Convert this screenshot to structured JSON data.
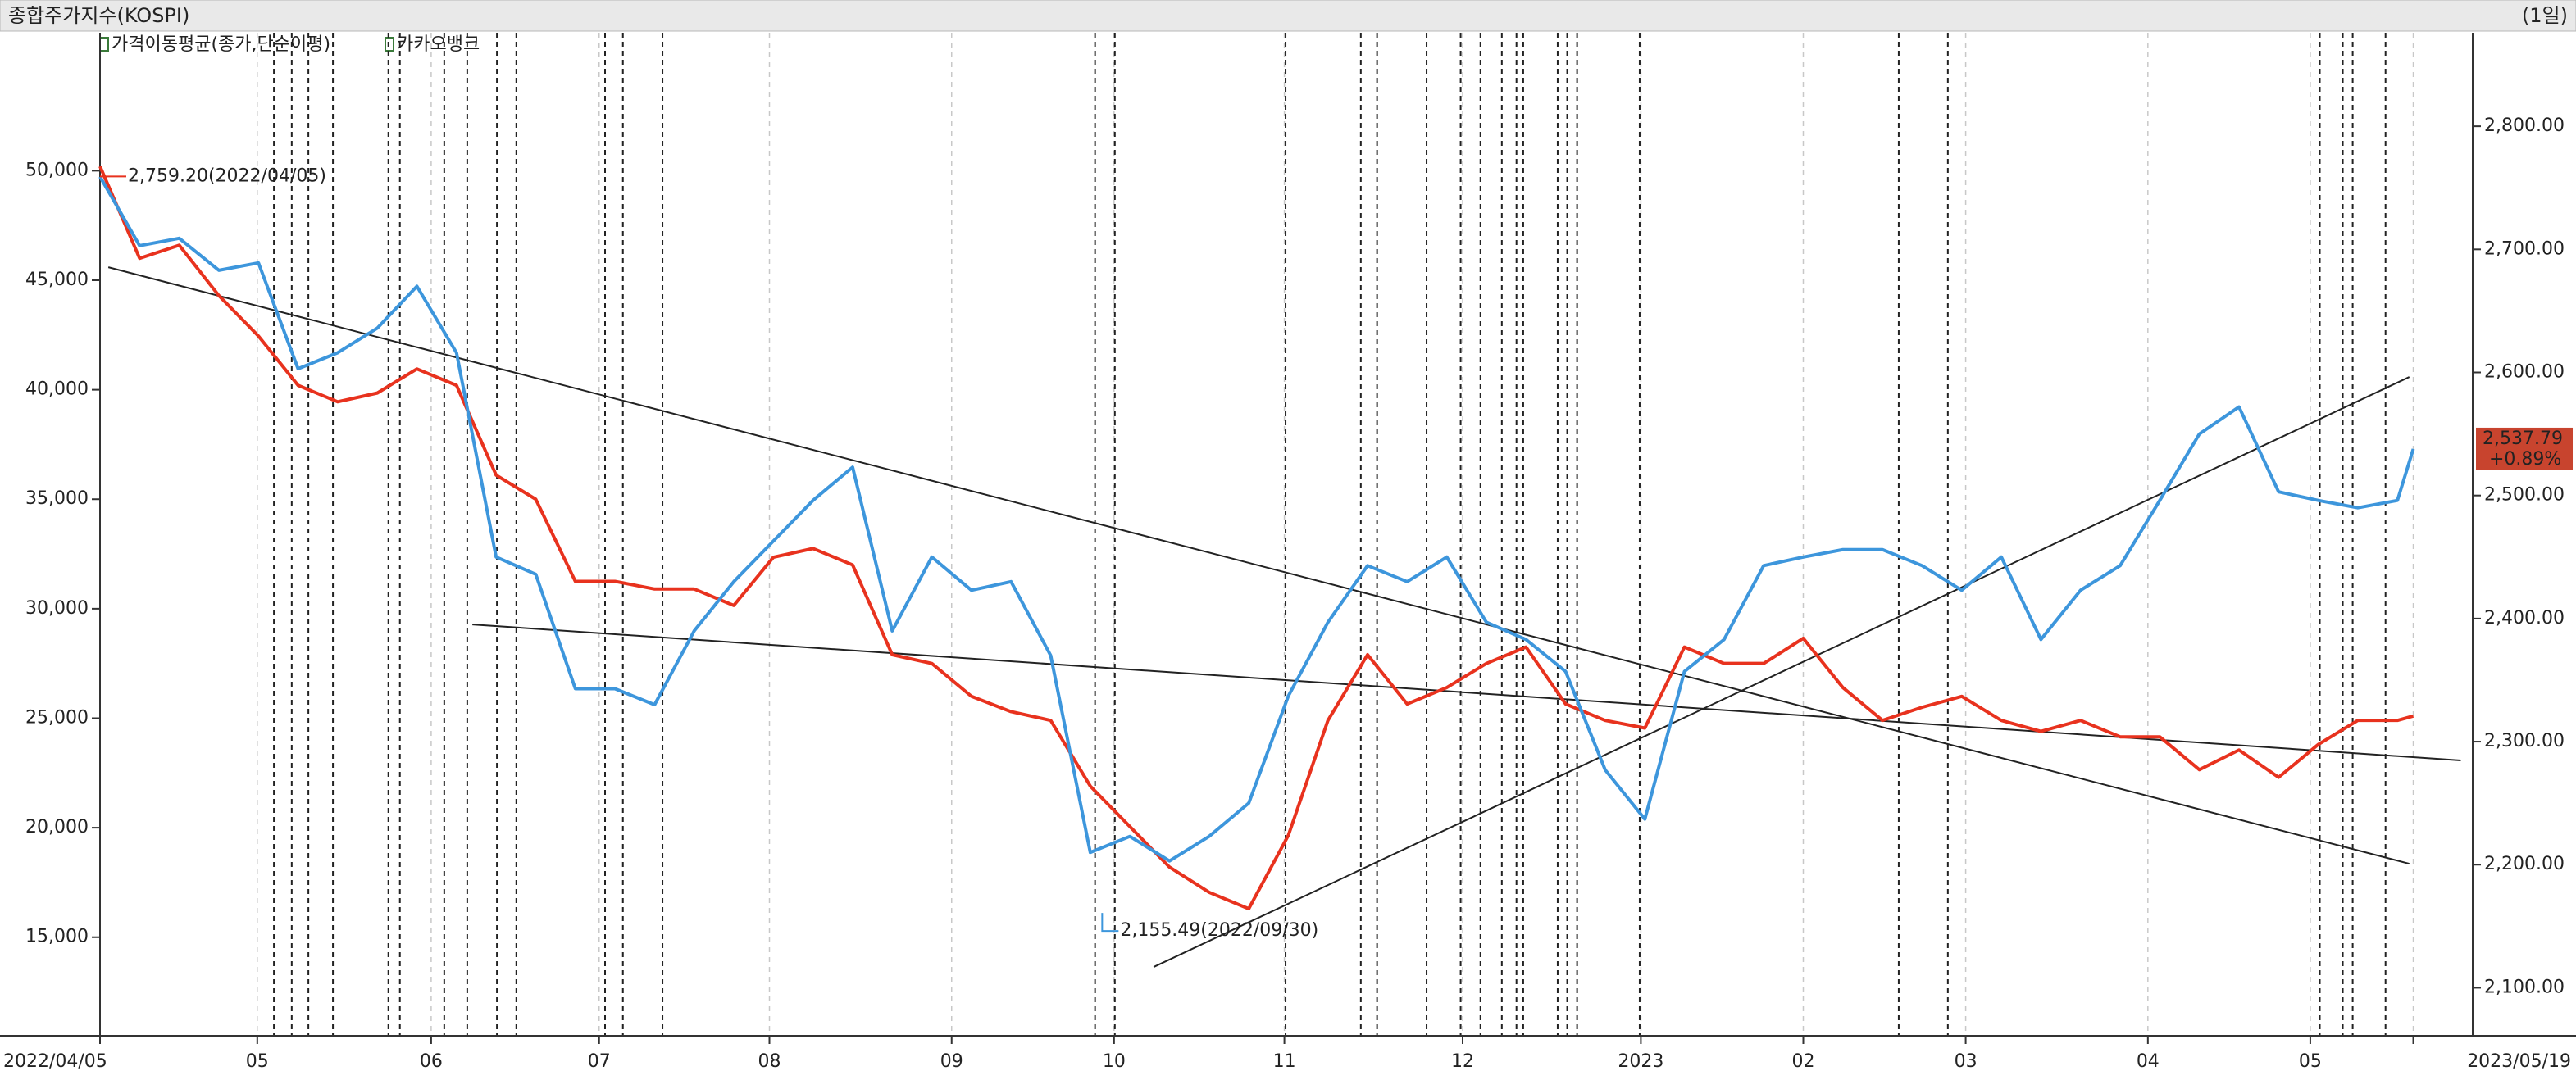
{
  "chart_data": {
    "type": "line",
    "title": "종합주가지수(KOSPI)",
    "period_label": "(1일)",
    "indicator": "가격이동평균(종가,단순이평)",
    "grid": true,
    "x": [
      0,
      1,
      2,
      3,
      4,
      5,
      6,
      7,
      8,
      9,
      10,
      11,
      12,
      13,
      14,
      15,
      16,
      17,
      18,
      19,
      20,
      21,
      22,
      23,
      24,
      25,
      26,
      27,
      28,
      29,
      30,
      31,
      32,
      33,
      34,
      35,
      36,
      37,
      38,
      39,
      40,
      41,
      42,
      43,
      44,
      45,
      46,
      47,
      48,
      49,
      50,
      51,
      52,
      53,
      54,
      55,
      56,
      57,
      58,
      58.4
    ],
    "xlim": [
      0,
      59.9
    ],
    "xticks": [
      {
        "value": 0,
        "label": "2022/04/05"
      },
      {
        "value": 3.97,
        "label": "05"
      },
      {
        "value": 8.36,
        "label": "06"
      },
      {
        "value": 12.6,
        "label": "07"
      },
      {
        "value": 16.9,
        "label": "08"
      },
      {
        "value": 21.5,
        "label": "09"
      },
      {
        "value": 25.6,
        "label": "10"
      },
      {
        "value": 29.9,
        "label": "11"
      },
      {
        "value": 34.4,
        "label": "12"
      },
      {
        "value": 38.9,
        "label": "2023"
      },
      {
        "value": 43.0,
        "label": "02"
      },
      {
        "value": 47.1,
        "label": "03"
      },
      {
        "value": 51.7,
        "label": "04"
      },
      {
        "value": 55.8,
        "label": "05"
      },
      {
        "value": 58.4,
        "label": "2023/05/19"
      }
    ],
    "ylim": [
      10500,
      56300
    ],
    "yticks": [
      {
        "value": 15000,
        "label": "15,000"
      },
      {
        "value": 20000,
        "label": "20,000"
      },
      {
        "value": 25000,
        "label": "25,000"
      },
      {
        "value": 30000,
        "label": "30,000"
      },
      {
        "value": 35000,
        "label": "35,000"
      },
      {
        "value": 40000,
        "label": "40,000"
      },
      {
        "value": 45000,
        "label": "45,000"
      },
      {
        "value": 50000,
        "label": "50,000"
      }
    ],
    "y2lim": [
      2061,
      2876
    ],
    "y2ticks": [
      {
        "value": 2100,
        "label": "2,100.00"
      },
      {
        "value": 2200,
        "label": "2,200.00"
      },
      {
        "value": 2300,
        "label": "2,300.00"
      },
      {
        "value": 2400,
        "label": "2,400.00"
      },
      {
        "value": 2500,
        "label": "2,500.00"
      },
      {
        "value": 2600,
        "label": "2,600.00"
      },
      {
        "value": 2700,
        "label": "2,700.00"
      },
      {
        "value": 2800,
        "label": "2,800.00"
      }
    ],
    "series": [
      {
        "color": "#3d96dc",
        "axis": "y2",
        "values": [
          2759,
          2703,
          2709,
          2683,
          2689,
          2603,
          2616,
          2636,
          2670,
          2616,
          2450,
          2436,
          2343,
          2343,
          2330,
          2390,
          2430,
          2463,
          2496,
          2523,
          2390,
          2450,
          2423,
          2430,
          2370,
          2210,
          2223,
          2203,
          2223,
          2250,
          2337,
          2397,
          2443,
          2430,
          2450,
          2397,
          2383,
          2357,
          2277,
          2237,
          2357,
          2383,
          2443,
          2450,
          2456,
          2456,
          2443,
          2423,
          2450,
          2383,
          2423,
          2443,
          2496,
          2550,
          2572,
          2503,
          2496,
          2490,
          2496,
          2537.79
        ]
      },
      {
        "name": "카카오뱅크",
        "color": "#e8321e",
        "values": [
          50200,
          46000,
          46600,
          44300,
          42450,
          40200,
          39450,
          39850,
          40950,
          40200,
          36100,
          35000,
          31250,
          31250,
          30900,
          30900,
          30150,
          32350,
          32750,
          32000,
          27900,
          27500,
          26000,
          25300,
          24900,
          21900,
          20050,
          18200,
          17050,
          16300,
          19650,
          24900,
          27900,
          25650,
          26400,
          27500,
          28250,
          25650,
          24900,
          24550,
          28250,
          27500,
          27500,
          28650,
          26400,
          24900,
          25500,
          26000,
          24900,
          24400,
          24900,
          24150,
          24150,
          22650,
          23550,
          22300,
          23800,
          24900,
          24900,
          25100
        ]
      }
    ],
    "annotations": [
      {
        "x": 0,
        "value": 2759.2,
        "label": "2,759.20(2022/04/05)",
        "color": "#e8321e"
      },
      {
        "x": 25.3,
        "value": 2155.49,
        "label": "2,155.49(2022/09/30)",
        "color": "#3d96dc"
      }
    ],
    "last_value": {
      "value": 2537.79,
      "label": "2,537.79",
      "change": "+0.89%",
      "color": "#c8442e"
    },
    "trendlines": [
      {
        "x": [
          0.21,
          58.3
        ],
        "values": [
          2685.5,
          2200.8
        ]
      },
      {
        "x": [
          9.4,
          59.6
        ],
        "values": [
          2395.2,
          2284.7
        ]
      },
      {
        "x": [
          26.6,
          58.3
        ],
        "values": [
          2116.9,
          2596.3
        ]
      }
    ],
    "event_lines": [
      4.39,
      4.84,
      5.26,
      5.88,
      7.28,
      7.57,
      8.69,
      9.27,
      10.02,
      10.51,
      12.75,
      13.2,
      14.2,
      25.12,
      25.62,
      29.93,
      31.83,
      32.24,
      33.49,
      34.35,
      34.85,
      35.39,
      35.76,
      35.93,
      36.8,
      37.04,
      37.29,
      38.87,
      45.41,
      46.65,
      56.04,
      56.62,
      56.87,
      57.7
    ]
  }
}
